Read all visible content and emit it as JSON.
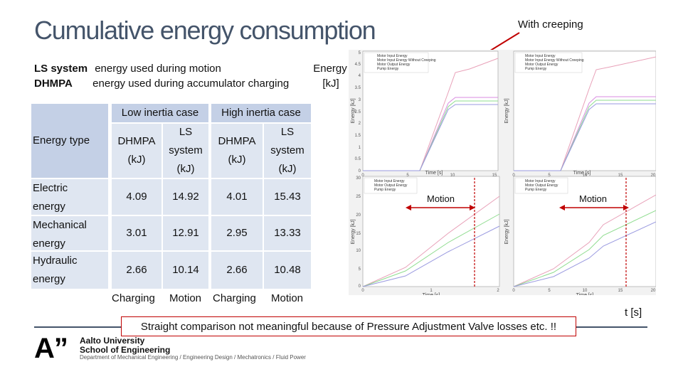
{
  "title": "Cumulative energy consumption",
  "annotation": "With creeping",
  "legend": {
    "ls_label": "LS system",
    "ls_desc": "energy used during motion",
    "dhmpa_label": "DHMPA",
    "dhmpa_desc": "energy used during accumulator charging",
    "energy_label": "Energy",
    "energy_unit": "[kJ]"
  },
  "table": {
    "low_inertia": "Low inertia case",
    "high_inertia": "High inertia case",
    "energy_type": "Energy type",
    "col_dhmpa_1": "DHMPA",
    "col_dhmpa_2": "(kJ)",
    "col_ls_1": "LS",
    "col_ls_2": "system",
    "col_ls_3": "(kJ)",
    "rows": [
      {
        "type_1": "Electric",
        "type_2": "energy",
        "v": [
          "4.09",
          "14.92",
          "4.01",
          "15.43"
        ]
      },
      {
        "type_1": "Mechanical",
        "type_2": "energy",
        "v": [
          "3.01",
          "12.91",
          "2.95",
          "13.33"
        ]
      },
      {
        "type_1": "Hydraulic",
        "type_2": "energy",
        "v": [
          "2.66",
          "10.14",
          "2.66",
          "10.48"
        ]
      }
    ],
    "footer": [
      "Charging",
      "Motion",
      "Charging",
      "Motion"
    ]
  },
  "plots": {
    "y_axis_label": "Energy [kJ]",
    "x_axis_label": "Time [s]",
    "legend_top": [
      "Motor Input Energy",
      "Motor Input Energy Without Creeping",
      "Motor Output Energy",
      "Pump Energy"
    ],
    "legend_bottom": [
      "Motor Input Energy",
      "Motor Output Energy",
      "Pump Energy"
    ],
    "ticks_top_y": [
      "5",
      "4.5",
      "4",
      "3.5",
      "3",
      "2.5",
      "2",
      "1.5",
      "1",
      "0.5",
      "0"
    ],
    "ticks_top_x_left": [
      "0",
      "5",
      "10",
      "15"
    ],
    "ticks_top_x_right": [
      "0",
      "5",
      "10",
      "15",
      "20"
    ],
    "ticks_bottom_y": [
      "30",
      "25",
      "20",
      "15",
      "10",
      "5",
      "0"
    ],
    "ticks_bottom_x_left": [
      "0",
      "1",
      "2"
    ],
    "ticks_bottom_x_right": [
      "0",
      "5",
      "10",
      "15",
      "20"
    ],
    "motion_label": "Motion",
    "colors": {
      "input": "#e8a0b8",
      "nocreep": "#d88be0",
      "output": "#8fdc8f",
      "pump": "#9a9ae0"
    }
  },
  "note": "Straight comparison not meaningful because of Pressure Adjustment Valve losses etc. !!",
  "time_label": "t [s]",
  "footer": {
    "logo": "A”",
    "university": "Aalto University",
    "school": "School of Engineering",
    "department": "Department of Mechanical Engineering / Engineering Design / Mechatronics / Fluid Power"
  }
}
